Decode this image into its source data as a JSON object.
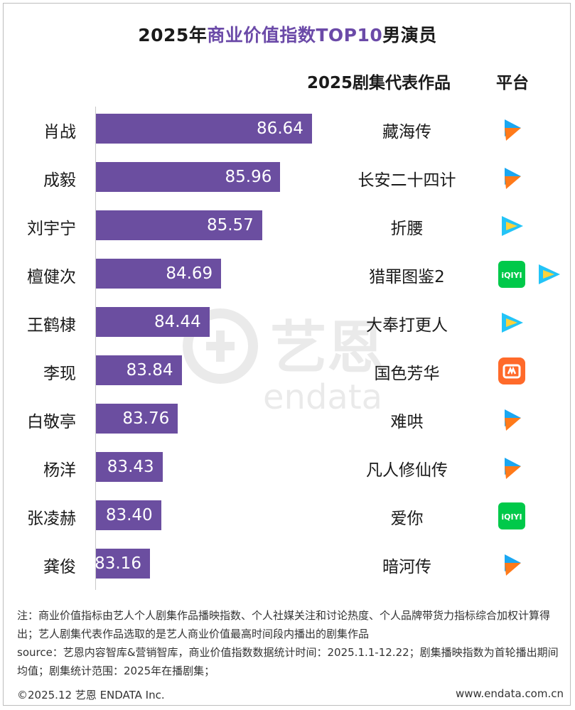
{
  "title": {
    "year": "2025年",
    "highlight": "商业价值指数TOP10",
    "suffix": "男演员"
  },
  "headers": {
    "works": "2025剧集代表作品",
    "platform": "平台"
  },
  "colors": {
    "bar": "#6b4ea0",
    "accent": "#6b4aa8",
    "tencent_blue": "#1aa7f2",
    "tencent_orange": "#ff7a1a",
    "iqiyi": "#00c94a",
    "youku": "#23c4f7",
    "mango": "#ff6a2a"
  },
  "chart_data": {
    "type": "bar",
    "orientation": "horizontal",
    "title": "2025年商业价值指数TOP10男演员",
    "categories": [
      "肖战",
      "成毅",
      "刘宇宁",
      "檀健次",
      "王鹤棣",
      "李现",
      "白敬亭",
      "杨洋",
      "张凌赫",
      "龚俊"
    ],
    "values": [
      86.64,
      85.96,
      85.57,
      84.69,
      84.44,
      83.84,
      83.76,
      83.43,
      83.4,
      83.16
    ],
    "value_labels": [
      "86.64",
      "85.96",
      "85.57",
      "84.69",
      "84.44",
      "83.84",
      "83.76",
      "83.43",
      "83.40",
      "83.16"
    ],
    "works": [
      "藏海传",
      "长安二十四计",
      "折腰",
      "猎罪图鉴2",
      "大奉打更人",
      "国色芳华",
      "难哄",
      "凡人修仙传",
      "爱你",
      "暗河传"
    ],
    "platforms": [
      [
        "tencent-video"
      ],
      [
        "tencent-video"
      ],
      [
        "youku"
      ],
      [
        "iqiyi",
        "youku"
      ],
      [
        "youku"
      ],
      [
        "mango-tv"
      ],
      [
        "tencent-video"
      ],
      [
        "tencent-video"
      ],
      [
        "iqiyi"
      ],
      [
        "tencent-video"
      ]
    ],
    "grid": false
  },
  "watermark": {
    "logo_text": "艺恩",
    "brand": "endata"
  },
  "notes": [
    "注：商业价值指标由艺人个人剧集作品播映指数、个人社媒关注和讨论热度、个人品牌带货力指标综合加权计算得出；艺人剧集代表作品选取的是艺人商业价值最高时间段内播出的剧集作品",
    "source：艺恩内容智库&营销智库，商业价值指数数据统计时间：2025.1.1-12.22；剧集播映指数为首轮播出期间均值；剧集统计范围：2025年在播剧集；"
  ],
  "footer": {
    "copyright": "©2025.12 艺恩 ENDATA Inc.",
    "url": "www.endata.com.cn"
  }
}
